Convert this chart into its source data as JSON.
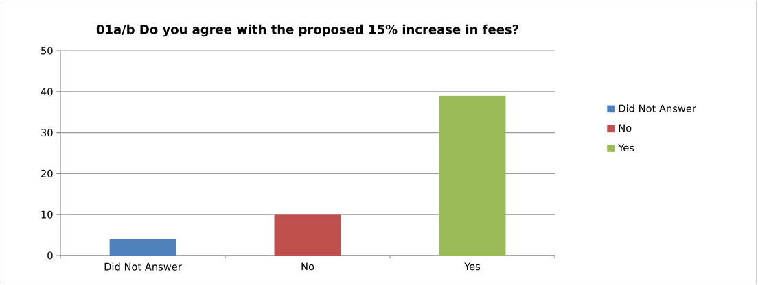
{
  "chart_data": {
    "type": "bar",
    "title": "01a/b Do you agree with the proposed 15% increase in fees?",
    "categories": [
      "Did Not Answer",
      "No",
      "Yes"
    ],
    "series": [
      {
        "name": "Did Not Answer",
        "color": "#4f81bd",
        "values": [
          4,
          null,
          null
        ]
      },
      {
        "name": "No",
        "color": "#c0504d",
        "values": [
          null,
          10,
          null
        ]
      },
      {
        "name": "Yes",
        "color": "#9bbb59",
        "values": [
          null,
          null,
          39
        ]
      }
    ],
    "ylim": [
      0,
      50
    ],
    "yticks": [
      0,
      10,
      20,
      30,
      40,
      50
    ],
    "grid": "y",
    "legend": "right"
  }
}
